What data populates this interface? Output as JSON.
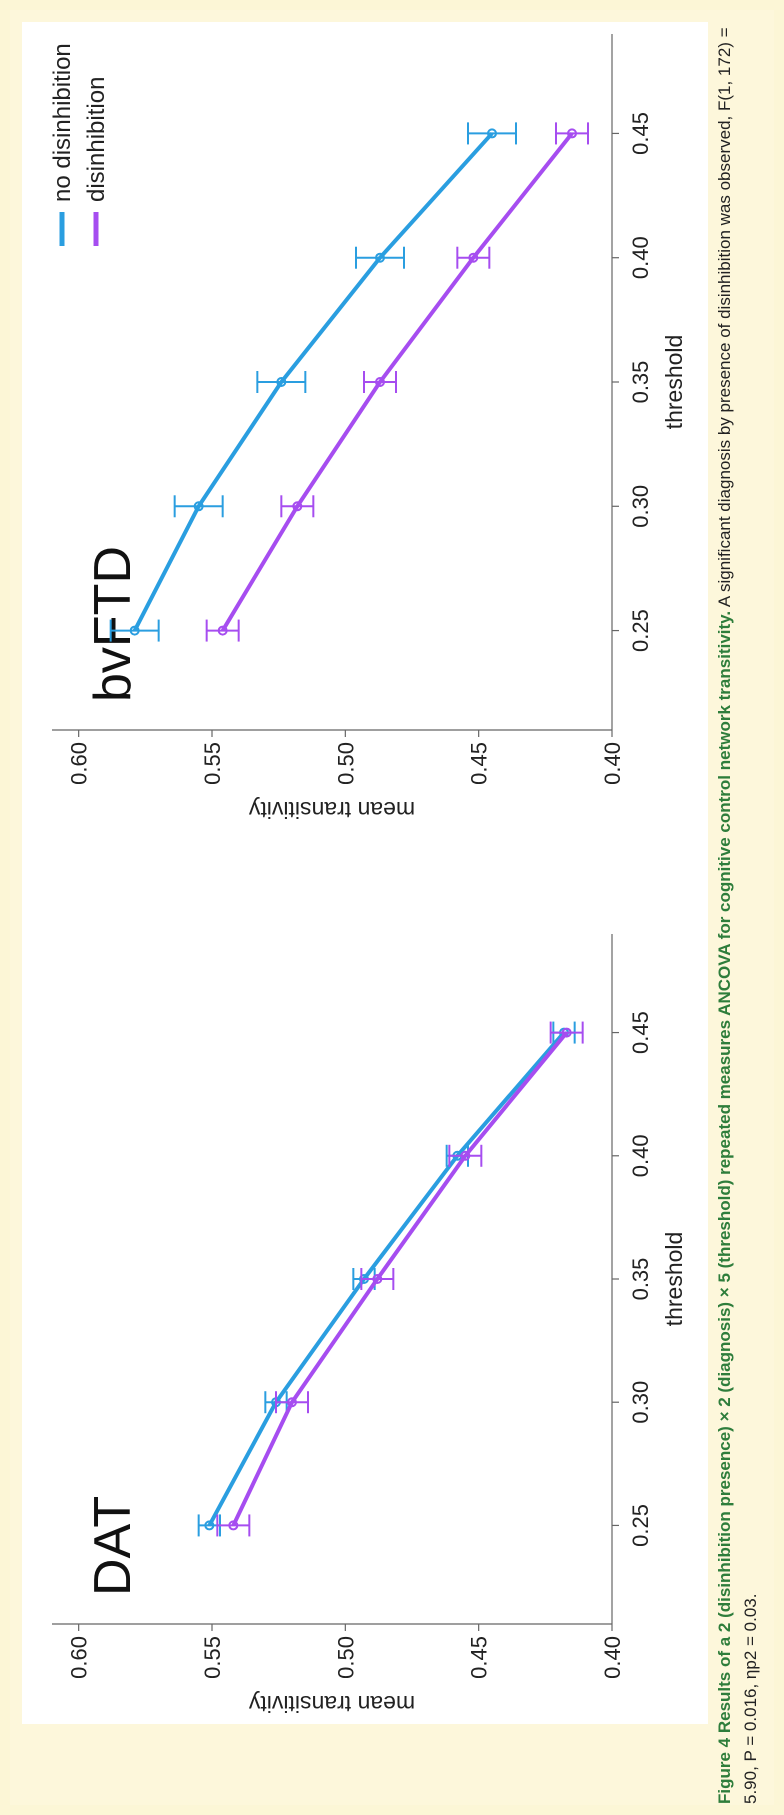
{
  "colors": {
    "series_blue": "#2a9ee0",
    "series_purple": "#a64df0",
    "caption_bold": "#2e7d3b",
    "background": "#fcf6d6"
  },
  "chart_data": [
    {
      "type": "line",
      "title": "DAT",
      "xlabel": "threshold",
      "ylabel": "mean transitivity",
      "x": [
        0.25,
        0.3,
        0.35,
        0.4,
        0.45
      ],
      "x_ticks": [
        "0.25",
        "0.30",
        "0.35",
        "0.40",
        "0.45"
      ],
      "y_ticks": [
        "0.40",
        "0.45",
        "0.50",
        "0.55",
        "0.60"
      ],
      "xlim": [
        0.21,
        0.49
      ],
      "ylim": [
        0.4,
        0.61
      ],
      "grid": false,
      "series": [
        {
          "name": "no disinhibition",
          "color": "#2a9ee0",
          "values": [
            0.551,
            0.526,
            0.493,
            0.458,
            0.418
          ],
          "errors": [
            0.004,
            0.004,
            0.004,
            0.004,
            0.004
          ]
        },
        {
          "name": "disinhibition",
          "color": "#a64df0",
          "values": [
            0.542,
            0.52,
            0.488,
            0.455,
            0.417
          ],
          "errors": [
            0.006,
            0.006,
            0.006,
            0.006,
            0.006
          ]
        }
      ]
    },
    {
      "type": "line",
      "title": "bvFTD",
      "xlabel": "threshold",
      "ylabel": "mean transitivity",
      "x": [
        0.25,
        0.3,
        0.35,
        0.4,
        0.45
      ],
      "x_ticks": [
        "0.25",
        "0.30",
        "0.35",
        "0.40",
        "0.45"
      ],
      "y_ticks": [
        "0.40",
        "0.45",
        "0.50",
        "0.55",
        "0.60"
      ],
      "xlim": [
        0.21,
        0.49
      ],
      "ylim": [
        0.4,
        0.61
      ],
      "grid": false,
      "legend_position": "top-right",
      "series": [
        {
          "name": "no disinhibition",
          "color": "#2a9ee0",
          "values": [
            0.579,
            0.555,
            0.524,
            0.487,
            0.445
          ],
          "errors": [
            0.009,
            0.009,
            0.009,
            0.009,
            0.009
          ]
        },
        {
          "name": "disinhibition",
          "color": "#a64df0",
          "values": [
            0.546,
            0.518,
            0.487,
            0.452,
            0.415
          ],
          "errors": [
            0.006,
            0.006,
            0.006,
            0.006,
            0.006
          ]
        }
      ]
    }
  ],
  "legend": {
    "items": [
      {
        "label": "no disinhibition",
        "color": "#2a9ee0"
      },
      {
        "label": "disinhibition",
        "color": "#a64df0"
      }
    ]
  },
  "caption": {
    "bold": "Figure 4 Results of a 2 (disinhibition presence) × 2 (diagnosis) × 5 (threshold) repeated measures ANCOVA for cognitive control network transitivity.",
    "text": " A significant diagnosis by presence of disinhibition was observed, F(1, 172) = 5.90, P = 0.016, ηp2 = 0.03."
  }
}
